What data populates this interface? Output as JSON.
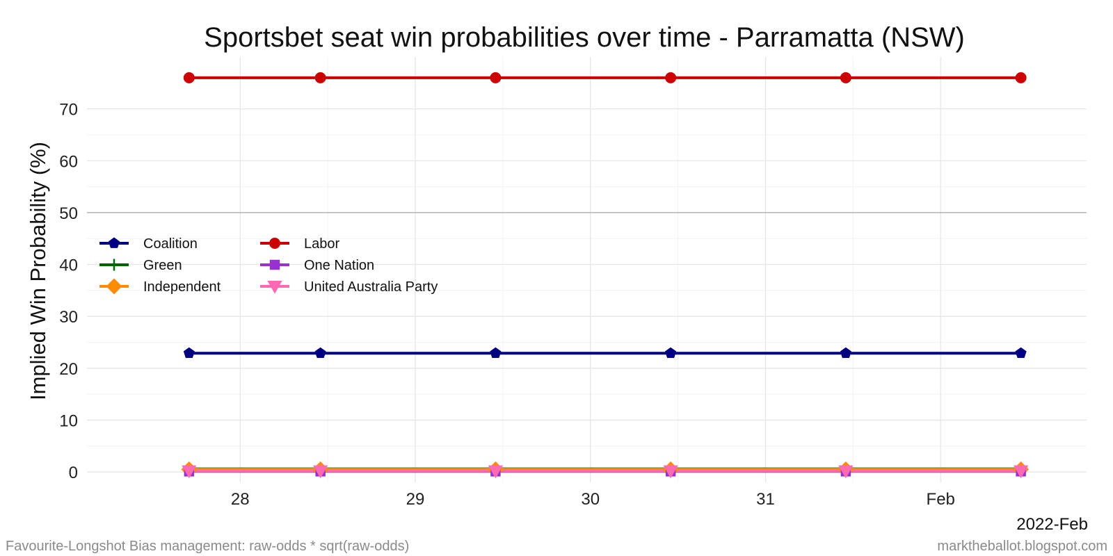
{
  "chart_data": {
    "type": "line",
    "title": "Sportsbet seat win probabilities over time - Parramatta (NSW)",
    "ylabel": "Implied Win Probability (%)",
    "xlabel": "",
    "x_period_label": "2022-Feb",
    "ylim": [
      -2,
      80
    ],
    "y_ticks": [
      0,
      10,
      20,
      30,
      40,
      50,
      60,
      70
    ],
    "x_ticks": [
      {
        "label": "28",
        "value": "2022-01-28"
      },
      {
        "label": "29",
        "value": "2022-01-29"
      },
      {
        "label": "30",
        "value": "2022-01-30"
      },
      {
        "label": "31",
        "value": "2022-01-31"
      },
      {
        "label": "Feb",
        "value": "2022-02-01"
      }
    ],
    "xlim": [
      "2022-01-27 03:00",
      "2022-02-01 20:00"
    ],
    "x": [
      "2022-01-27 17:00",
      "2022-01-28 11:00",
      "2022-01-29 11:00",
      "2022-01-30 11:00",
      "2022-01-31 11:00",
      "2022-02-01 11:00"
    ],
    "reference_line": 50,
    "grid": true,
    "legend_position": "left",
    "series": [
      {
        "name": "Coalition",
        "color": "#000080",
        "marker": "pentagon",
        "values": [
          22.9,
          22.9,
          22.9,
          22.9,
          22.9,
          22.9
        ]
      },
      {
        "name": "Labor",
        "color": "#CC0000",
        "marker": "circle",
        "values": [
          76.0,
          76.0,
          76.0,
          76.0,
          76.0,
          76.0
        ]
      },
      {
        "name": "Green",
        "color": "#006400",
        "marker": "plus",
        "values": [
          0.6,
          0.6,
          0.6,
          0.6,
          0.6,
          0.6
        ]
      },
      {
        "name": "One Nation",
        "color": "#9932CC",
        "marker": "square",
        "values": [
          0.1,
          0.1,
          0.1,
          0.1,
          0.1,
          0.1
        ]
      },
      {
        "name": "Independent",
        "color": "#FF8C00",
        "marker": "diamond",
        "values": [
          0.5,
          0.5,
          0.5,
          0.5,
          0.5,
          0.5
        ]
      },
      {
        "name": "United Australia Party",
        "color": "#FF69B4",
        "marker": "triangle-down",
        "values": [
          0.2,
          0.2,
          0.2,
          0.2,
          0.2,
          0.2
        ]
      }
    ],
    "draw_order": [
      "Coalition",
      "Labor",
      "Green",
      "Independent",
      "One Nation",
      "United Australia Party"
    ],
    "legend_order": [
      "Coalition",
      "Labor",
      "Green",
      "One Nation",
      "Independent",
      "United Australia Party"
    ]
  },
  "caption_left": "Favourite-Longshot Bias management: raw-odds * sqrt(raw-odds)",
  "caption_right": "marktheballot.blogspot.com"
}
